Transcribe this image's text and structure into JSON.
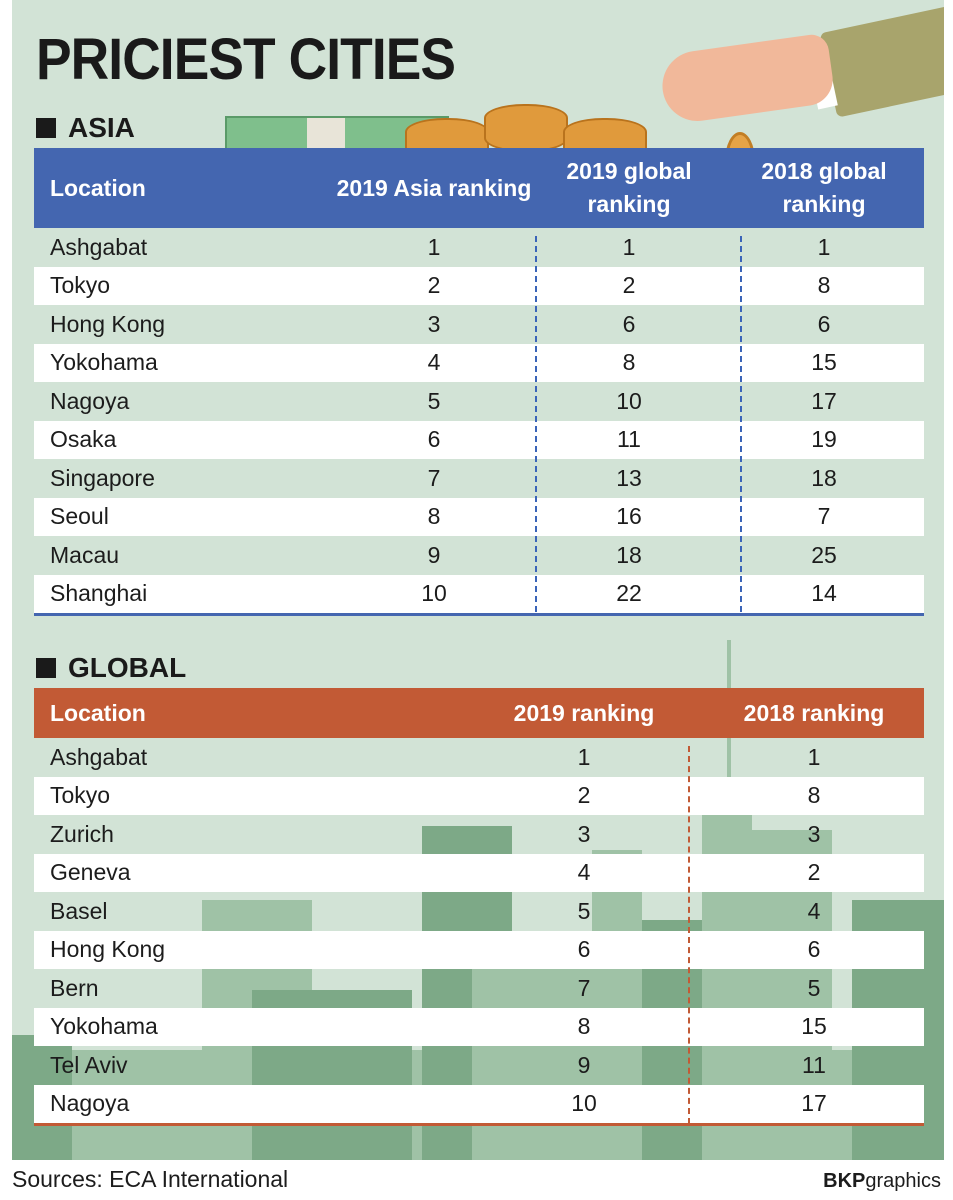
{
  "title": "PRICIEST CITIES",
  "asia": {
    "section_label": "ASIA",
    "headers": [
      "Location",
      "2019 Asia ranking",
      "2019 global ranking",
      "2018 global ranking"
    ],
    "rows": [
      [
        "Ashgabat",
        "1",
        "1",
        "1"
      ],
      [
        "Tokyo",
        "2",
        "2",
        "8"
      ],
      [
        "Hong Kong",
        "3",
        "6",
        "6"
      ],
      [
        "Yokohama",
        "4",
        "8",
        "15"
      ],
      [
        "Nagoya",
        "5",
        "10",
        "17"
      ],
      [
        "Osaka",
        "6",
        "11",
        "19"
      ],
      [
        "Singapore",
        "7",
        "13",
        "18"
      ],
      [
        "Seoul",
        "8",
        "16",
        "7"
      ],
      [
        "Macau",
        "9",
        "18",
        "25"
      ],
      [
        "Shanghai",
        "10",
        "22",
        "14"
      ]
    ]
  },
  "global": {
    "section_label": "GLOBAL",
    "headers": [
      "Location",
      "2019 ranking",
      "2018 ranking"
    ],
    "rows": [
      [
        "Ashgabat",
        "1",
        "1"
      ],
      [
        "Tokyo",
        "2",
        "8"
      ],
      [
        "Zurich",
        "3",
        "3"
      ],
      [
        "Geneva",
        "4",
        "2"
      ],
      [
        "Basel",
        "5",
        "4"
      ],
      [
        "Hong Kong",
        "6",
        "6"
      ],
      [
        "Bern",
        "7",
        "5"
      ],
      [
        "Yokohama",
        "8",
        "15"
      ],
      [
        "Tel Aviv",
        "9",
        "11"
      ],
      [
        "Nagoya",
        "10",
        "17"
      ]
    ]
  },
  "footer": {
    "source": "Sources: ECA International",
    "brand_bold": "BKP",
    "brand_rest": "graphics"
  },
  "colors": {
    "background": "#d2e3d6",
    "asia_header": "#4466b0",
    "global_header": "#c25a35"
  }
}
